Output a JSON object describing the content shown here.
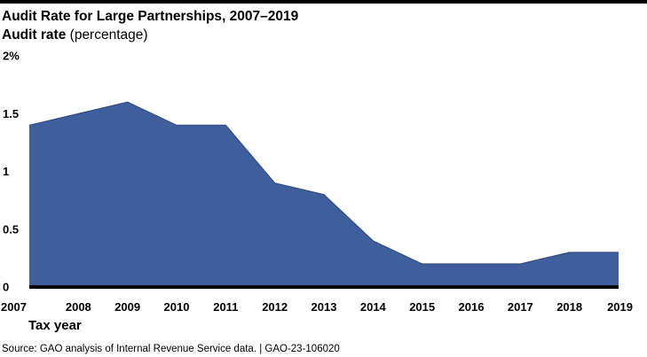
{
  "chart_data": {
    "type": "area",
    "title": "Audit Rate for Large Partnerships, 2007–2019",
    "ylabel": "Audit rate",
    "ylabel_unit": "(percentage)",
    "xlabel": "Tax year",
    "x": [
      "2007",
      "2008",
      "2009",
      "2010",
      "2011",
      "2012",
      "2013",
      "2014",
      "2015",
      "2016",
      "2017",
      "2018",
      "2019"
    ],
    "values": [
      1.4,
      1.5,
      1.6,
      1.4,
      1.4,
      0.9,
      0.8,
      0.4,
      0.2,
      0.2,
      0.2,
      0.3,
      0.3
    ],
    "ylim": [
      0,
      2
    ],
    "y_ticks": [
      0,
      0.5,
      1,
      1.5,
      2
    ],
    "y_tick_labels": [
      "0",
      "0.5",
      "1",
      "1.5",
      "2%"
    ],
    "grid": false,
    "legend": "none",
    "colors": {
      "fill": "#3f5f9c",
      "stroke": "#2c4478",
      "baseline": "#000000"
    }
  },
  "source": "Source: GAO analysis of Internal Revenue Service data.  |  GAO-23-106020"
}
